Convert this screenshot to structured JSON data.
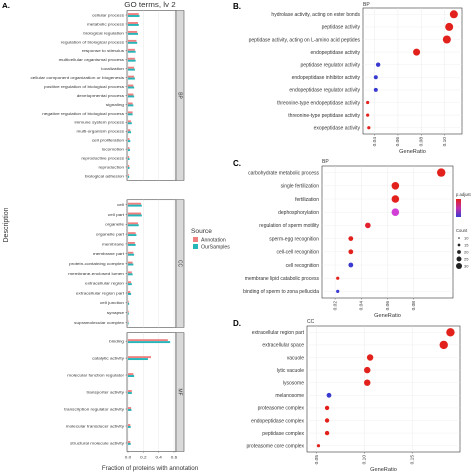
{
  "chart_data": [
    {
      "panel": "A.",
      "type": "bar",
      "orientation": "horizontal",
      "title": "GO terms, lv 2",
      "xlabel": "Fraction of proteins with annotation",
      "ylabel": "Description",
      "xlim": [
        0,
        0.6
      ],
      "xticks": [
        "0.0",
        "0.2",
        "0.4",
        "0.6"
      ],
      "legend": {
        "title": "Source",
        "entries": [
          "Annotation",
          "OurSamples"
        ],
        "colors": [
          "#f08080",
          "#26b5b8"
        ],
        "position": "right"
      },
      "groups": [
        {
          "name": "BP",
          "categories": [
            {
              "label": "cellular process",
              "values": [
                0.14,
                0.15
              ]
            },
            {
              "label": "metabolic process",
              "values": [
                0.13,
                0.14
              ]
            },
            {
              "label": "biological regulation",
              "values": [
                0.12,
                0.13
              ]
            },
            {
              "label": "regulation of biological process",
              "values": [
                0.11,
                0.12
              ]
            },
            {
              "label": "response to stimulus",
              "values": [
                0.09,
                0.1
              ]
            },
            {
              "label": "multicellular organismal process",
              "values": [
                0.09,
                0.1
              ]
            },
            {
              "label": "localization",
              "values": [
                0.08,
                0.09
              ]
            },
            {
              "label": "cellular component organization or biogenesis",
              "values": [
                0.08,
                0.09
              ]
            },
            {
              "label": "positive regulation of biological process",
              "values": [
                0.07,
                0.08
              ]
            },
            {
              "label": "developmental process",
              "values": [
                0.07,
                0.08
              ]
            },
            {
              "label": "signaling",
              "values": [
                0.06,
                0.07
              ]
            },
            {
              "label": "negative regulation of biological process",
              "values": [
                0.06,
                0.06
              ]
            },
            {
              "label": "immune system process",
              "values": [
                0.04,
                0.05
              ]
            },
            {
              "label": "multi-organism process",
              "values": [
                0.03,
                0.04
              ]
            },
            {
              "label": "cell proliferation",
              "values": [
                0.02,
                0.03
              ]
            },
            {
              "label": "locomotion",
              "values": [
                0.02,
                0.025
              ]
            },
            {
              "label": "reproductive process",
              "values": [
                0.015,
                0.02
              ]
            },
            {
              "label": "reproduction",
              "values": [
                0.015,
                0.02
              ]
            },
            {
              "label": "biological adhesion",
              "values": [
                0.01,
                0.015
              ]
            }
          ]
        },
        {
          "name": "CC",
          "categories": [
            {
              "label": "cell",
              "values": [
                0.17,
                0.18
              ]
            },
            {
              "label": "cell part",
              "values": [
                0.17,
                0.18
              ]
            },
            {
              "label": "organelle",
              "values": [
                0.13,
                0.14
              ]
            },
            {
              "label": "organelle part",
              "values": [
                0.1,
                0.11
              ]
            },
            {
              "label": "membrane",
              "values": [
                0.09,
                0.1
              ]
            },
            {
              "label": "membrane part",
              "values": [
                0.07,
                0.08
              ]
            },
            {
              "label": "protein-containing complex",
              "values": [
                0.06,
                0.07
              ]
            },
            {
              "label": "membrane-enclosed lumen",
              "values": [
                0.05,
                0.06
              ]
            },
            {
              "label": "extracellular region",
              "values": [
                0.04,
                0.05
              ]
            },
            {
              "label": "extracellular region part",
              "values": [
                0.03,
                0.04
              ]
            },
            {
              "label": "cell junction",
              "values": [
                0.01,
                0.015
              ]
            },
            {
              "label": "synapse",
              "values": [
                0.008,
                0.01
              ]
            },
            {
              "label": "supramolecular complex",
              "values": [
                0.006,
                0.008
              ]
            }
          ]
        },
        {
          "name": "MF",
          "categories": [
            {
              "label": "binding",
              "values": [
                0.52,
                0.55
              ]
            },
            {
              "label": "catalytic activity",
              "values": [
                0.3,
                0.26
              ]
            },
            {
              "label": "molecular function regulator",
              "values": [
                0.07,
                0.08
              ]
            },
            {
              "label": "transporter activity",
              "values": [
                0.05,
                0.05
              ]
            },
            {
              "label": "transcription regulator activity",
              "values": [
                0.04,
                0.045
              ]
            },
            {
              "label": "molecular transducer activity",
              "values": [
                0.03,
                0.035
              ]
            },
            {
              "label": "structural molecule activity",
              "values": [
                0.03,
                0.035
              ]
            }
          ]
        }
      ]
    },
    {
      "panel": "B.",
      "type": "scatter",
      "title": "BP",
      "xlabel": "GeneRatio",
      "xlim": [
        0.03,
        0.115
      ],
      "xticks": [
        "0.04",
        "0.06",
        "0.08",
        "0.10"
      ],
      "points": [
        {
          "label": "hydrolase activity, acting on ester bonds",
          "x": 0.108,
          "color": "#e3211c",
          "size": 4
        },
        {
          "label": "peptidase activity",
          "x": 0.104,
          "color": "#e3211c",
          "size": 4
        },
        {
          "label": "peptidase activity, acting on L-amino acid peptides",
          "x": 0.102,
          "color": "#e3211c",
          "size": 4
        },
        {
          "label": "endopeptidase activity",
          "x": 0.076,
          "color": "#e3211c",
          "size": 3.5
        },
        {
          "label": "peptidase regulator activity",
          "x": 0.043,
          "color": "#3a3ad0",
          "size": 2.2
        },
        {
          "label": "endopeptidase inhibitor activity",
          "x": 0.041,
          "color": "#3a3ad0",
          "size": 2
        },
        {
          "label": "endopeptidase regulator activity",
          "x": 0.041,
          "color": "#3a3ad0",
          "size": 2
        },
        {
          "label": "threonine-type endopeptidase activity",
          "x": 0.034,
          "color": "#e3211c",
          "size": 1.6
        },
        {
          "label": "threonine-type peptidase activity",
          "x": 0.034,
          "color": "#e3211c",
          "size": 1.6
        },
        {
          "label": "exopeptidase activity",
          "x": 0.035,
          "color": "#e3211c",
          "size": 1.6
        }
      ]
    },
    {
      "panel": "C.",
      "type": "scatter",
      "title": "BP",
      "xlabel": "GeneRatio",
      "xlim": [
        0.01,
        0.11
      ],
      "xticks": [
        "0.02",
        "0.04",
        "0.06",
        "0.08"
      ],
      "legend": {
        "color_title": "p.adjust",
        "size_title": "Count",
        "size_entries": [
          "10",
          "15",
          "20",
          "25",
          "30"
        ]
      },
      "points": [
        {
          "label": "carbohydrate metabolic process",
          "x": 0.101,
          "color": "#e3211c",
          "size": 4.2
        },
        {
          "label": "single fertilization",
          "x": 0.066,
          "color": "#e3211c",
          "size": 3.8
        },
        {
          "label": "fertilization",
          "x": 0.066,
          "color": "#e3211c",
          "size": 3.8
        },
        {
          "label": "dephosphorylation",
          "x": 0.066,
          "color": "#d23fd6",
          "size": 3.8
        },
        {
          "label": "regulation of sperm motility",
          "x": 0.045,
          "color": "#e3212e",
          "size": 2.8
        },
        {
          "label": "sperm-egg recognition",
          "x": 0.032,
          "color": "#e3211c",
          "size": 2.4
        },
        {
          "label": "cell-cell recognition",
          "x": 0.032,
          "color": "#e3211c",
          "size": 2.4
        },
        {
          "label": "cell recognition",
          "x": 0.032,
          "color": "#3a3ad0",
          "size": 2.4
        },
        {
          "label": "membrane lipid catabolic process",
          "x": 0.022,
          "color": "#e3211c",
          "size": 1.6
        },
        {
          "label": "binding of sperm to zona pellucida",
          "x": 0.022,
          "color": "#3a3ad0",
          "size": 1.6
        }
      ]
    },
    {
      "panel": "D.",
      "type": "scatter",
      "title": "CC",
      "xlabel": "GeneRatio",
      "xlim": [
        0.04,
        0.2
      ],
      "xticks": [
        "0.05",
        "0.10",
        "0.15"
      ],
      "points": [
        {
          "label": "extracellular region part",
          "x": 0.19,
          "color": "#e3211c",
          "size": 4.2
        },
        {
          "label": "extracellular space",
          "x": 0.183,
          "color": "#e3211c",
          "size": 4.2
        },
        {
          "label": "vacuole",
          "x": 0.106,
          "color": "#e3211c",
          "size": 3.2
        },
        {
          "label": "lytic vacuole",
          "x": 0.103,
          "color": "#e3211c",
          "size": 3.2
        },
        {
          "label": "lysosome",
          "x": 0.103,
          "color": "#e3211c",
          "size": 3.2
        },
        {
          "label": "melanosome",
          "x": 0.063,
          "color": "#3a3ad0",
          "size": 2.4
        },
        {
          "label": "proteasome complex",
          "x": 0.061,
          "color": "#e3211c",
          "size": 2.2
        },
        {
          "label": "endopeptidase complex",
          "x": 0.061,
          "color": "#e3211c",
          "size": 2.2
        },
        {
          "label": "peptidase complex",
          "x": 0.061,
          "color": "#e3211c",
          "size": 2.2
        },
        {
          "label": "proteasome core complex",
          "x": 0.052,
          "color": "#e3211c",
          "size": 1.6
        }
      ]
    }
  ]
}
